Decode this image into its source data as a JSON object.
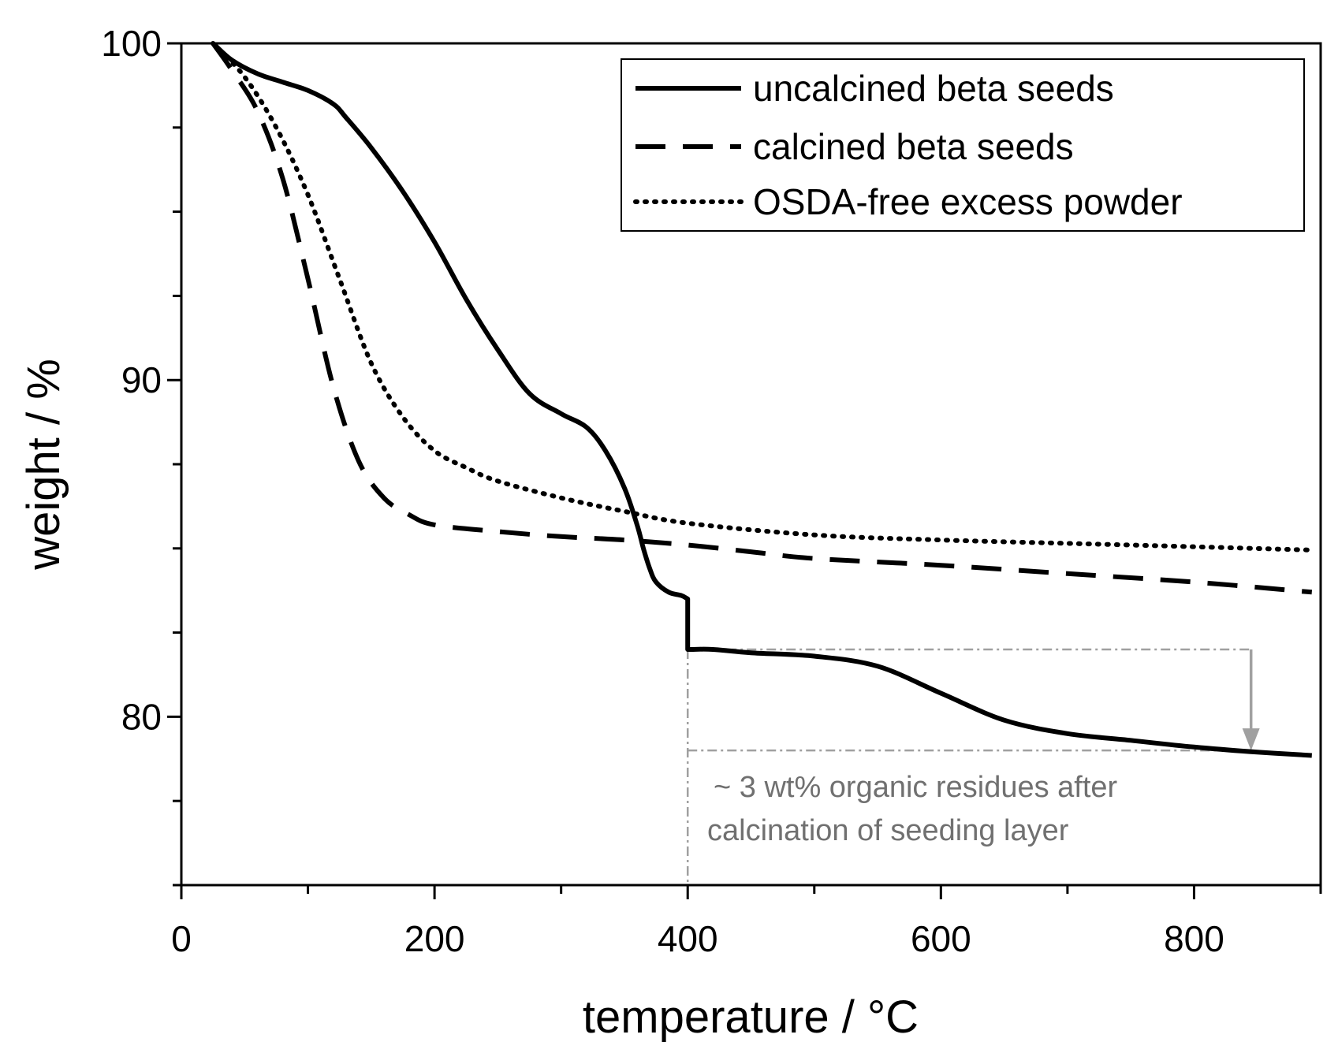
{
  "chart_data": {
    "type": "line",
    "title": "",
    "xlabel": "temperature / °C",
    "ylabel": "weight / %",
    "xlim": [
      0,
      900
    ],
    "ylim": [
      75,
      100
    ],
    "xticks": [
      0,
      200,
      400,
      600,
      800
    ],
    "xtick_labels": [
      "0",
      "200",
      "400",
      "600",
      "800"
    ],
    "yticks": [
      80,
      90,
      100
    ],
    "ytick_labels": [
      "80",
      "90",
      "100"
    ],
    "grid": false,
    "legend_position": "top-right",
    "series": [
      {
        "name": "uncalcined beta seeds",
        "style": "solid",
        "x": [
          25,
          40,
          60,
          80,
          100,
          120,
          130,
          150,
          175,
          200,
          225,
          250,
          275,
          300,
          320,
          335,
          350,
          360,
          365,
          370,
          375,
          385,
          395,
          400,
          400,
          420,
          450,
          500,
          550,
          600,
          650,
          700,
          750,
          800,
          850,
          893
        ],
        "y": [
          100,
          99.5,
          99.1,
          98.85,
          98.6,
          98.2,
          97.8,
          96.9,
          95.6,
          94.1,
          92.4,
          90.9,
          89.6,
          89.0,
          88.6,
          87.9,
          86.8,
          85.7,
          85.0,
          84.4,
          84.0,
          83.7,
          83.6,
          83.5,
          82.0,
          82.0,
          81.9,
          81.8,
          81.5,
          80.7,
          79.9,
          79.5,
          79.3,
          79.1,
          78.95,
          78.85
        ]
      },
      {
        "name": "calcined beta seeds",
        "style": "dashed",
        "x": [
          25,
          40,
          60,
          80,
          100,
          120,
          140,
          160,
          180,
          200,
          250,
          300,
          350,
          400,
          450,
          500,
          600,
          700,
          800,
          893
        ],
        "y": [
          100,
          99.2,
          98.0,
          96.0,
          93.0,
          89.8,
          87.6,
          86.5,
          86.0,
          85.7,
          85.5,
          85.35,
          85.25,
          85.1,
          84.9,
          84.7,
          84.5,
          84.25,
          84.0,
          83.7
        ]
      },
      {
        "name": "OSDA-free excess powder",
        "style": "dotted",
        "x": [
          25,
          50,
          75,
          100,
          125,
          150,
          175,
          200,
          225,
          250,
          300,
          350,
          400,
          500,
          600,
          700,
          800,
          893
        ],
        "y": [
          100,
          99.0,
          97.5,
          95.5,
          93.0,
          90.5,
          88.9,
          87.9,
          87.4,
          87.0,
          86.5,
          86.1,
          85.75,
          85.4,
          85.25,
          85.15,
          85.05,
          84.95
        ]
      }
    ],
    "annotation": {
      "line1": "~ 3 wt% organic residues after",
      "line2": "calcination of seeding layer",
      "guide_x": 400,
      "level_top": 82.0,
      "level_bottom": 79.0,
      "arrow_x": 845,
      "color": "#a0a0a0"
    }
  }
}
